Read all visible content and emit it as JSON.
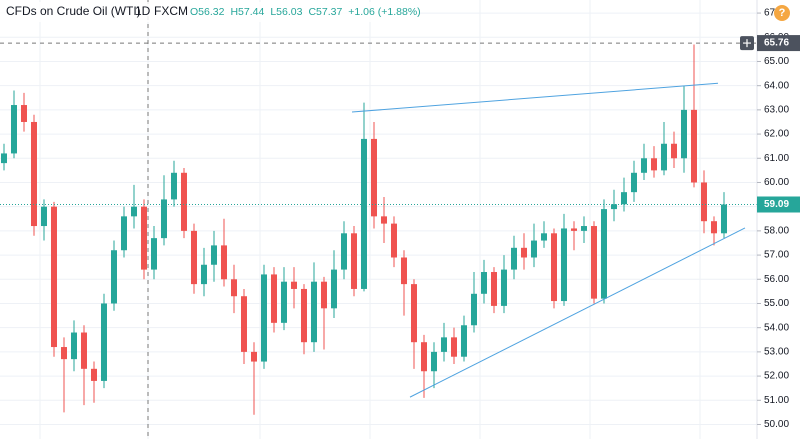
{
  "chart_data": {
    "type": "candlestick",
    "title": "CFDs on Crude Oil (WTI)",
    "interval": "1D",
    "source": "FXCM",
    "legend_ohlc": [
      "O56.32",
      "H57.44",
      "L56.03",
      "C57.37",
      "+1.06 (+1.88%)"
    ],
    "up_color": "#26a69a",
    "down_color": "#ef5350",
    "open": [
      60.8,
      61.2,
      63.2,
      62.5,
      58.2,
      59.0,
      53.2,
      52.7,
      53.8,
      52.3,
      51.8,
      55.0,
      57.2,
      58.6,
      59.0,
      56.4,
      57.7,
      59.3,
      60.4,
      58.0,
      55.8,
      56.6,
      57.4,
      56.0,
      55.3,
      53.0,
      52.6,
      56.2,
      54.2,
      55.9,
      55.6,
      53.4,
      55.9,
      54.8,
      56.4,
      57.9,
      55.6,
      61.8,
      58.6,
      58.3,
      56.9,
      55.8,
      53.4,
      52.2,
      53.0,
      53.6,
      52.8,
      54.1,
      55.4,
      56.3,
      54.9,
      56.4,
      57.3,
      56.9,
      57.6,
      57.9,
      55.1,
      58.1,
      58.0,
      58.2,
      55.2,
      58.9,
      59.1,
      59.6,
      60.4,
      61.0,
      60.5,
      61.6,
      61.0,
      63.0,
      60.0,
      58.4,
      57.9
    ],
    "high": [
      61.6,
      63.8,
      63.7,
      62.8,
      59.3,
      59.2,
      53.6,
      54.3,
      54.1,
      52.6,
      55.4,
      57.6,
      59.0,
      59.9,
      59.3,
      58.2,
      60.3,
      60.9,
      60.6,
      58.3,
      57.3,
      58.0,
      58.5,
      56.6,
      55.6,
      53.4,
      56.6,
      56.5,
      56.5,
      56.5,
      55.8,
      56.7,
      56.1,
      57.2,
      58.4,
      58.2,
      63.3,
      62.5,
      59.4,
      58.6,
      57.2,
      56.0,
      53.7,
      53.4,
      54.2,
      54.0,
      54.5,
      56.3,
      56.8,
      56.5,
      57.0,
      57.8,
      57.9,
      58.3,
      58.4,
      58.1,
      58.7,
      58.4,
      58.6,
      58.4,
      59.3,
      59.7,
      60.2,
      60.9,
      61.6,
      61.5,
      62.5,
      62.1,
      64.0,
      65.7,
      60.5,
      58.6,
      59.6
    ],
    "low": [
      60.5,
      61.0,
      62.1,
      57.8,
      57.6,
      52.8,
      50.5,
      52.2,
      50.8,
      50.9,
      51.5,
      54.7,
      56.9,
      58.1,
      56.0,
      56.0,
      57.4,
      59.0,
      57.7,
      55.4,
      55.3,
      55.9,
      55.7,
      54.6,
      52.5,
      50.4,
      52.3,
      53.8,
      53.9,
      54.8,
      52.9,
      53.0,
      53.1,
      54.4,
      56.0,
      55.3,
      55.5,
      58.1,
      57.5,
      56.5,
      54.5,
      52.3,
      51.1,
      51.5,
      52.6,
      52.5,
      52.6,
      53.8,
      55.0,
      54.6,
      54.6,
      56.0,
      56.4,
      56.5,
      57.3,
      54.8,
      54.9,
      57.2,
      57.5,
      55.0,
      55.0,
      58.4,
      58.8,
      59.2,
      60.1,
      60.2,
      60.3,
      60.6,
      60.4,
      59.8,
      57.9,
      57.4,
      57.7
    ],
    "close": [
      61.2,
      63.2,
      62.5,
      58.2,
      59.0,
      53.2,
      52.7,
      53.8,
      52.3,
      51.8,
      55.0,
      57.2,
      58.6,
      59.0,
      56.4,
      57.7,
      59.3,
      60.4,
      58.0,
      55.8,
      56.6,
      57.4,
      56.0,
      55.3,
      53.0,
      52.6,
      56.2,
      54.2,
      55.9,
      55.6,
      53.4,
      55.9,
      54.8,
      56.4,
      57.9,
      55.6,
      61.8,
      58.6,
      58.3,
      56.9,
      55.8,
      53.4,
      52.2,
      53.0,
      53.6,
      52.8,
      54.1,
      55.4,
      56.3,
      54.9,
      56.4,
      57.3,
      56.9,
      57.6,
      57.9,
      55.1,
      58.1,
      58.0,
      58.2,
      55.2,
      58.9,
      59.1,
      59.6,
      60.4,
      61.0,
      60.5,
      61.6,
      61.0,
      63.0,
      60.0,
      58.4,
      57.9,
      59.09
    ],
    "ylim": [
      49.4,
      67.54
    ],
    "yticks": [
      {
        "value": 50,
        "label": "50.00"
      },
      {
        "value": 51,
        "label": "51.00"
      },
      {
        "value": 52,
        "label": "52.00"
      },
      {
        "value": 53,
        "label": "53.00"
      },
      {
        "value": 54,
        "label": "54.00"
      },
      {
        "value": 55,
        "label": "55.00"
      },
      {
        "value": 56,
        "label": "56.00"
      },
      {
        "value": 57,
        "label": "57.00"
      },
      {
        "value": 58,
        "label": "58.00"
      },
      {
        "value": 59,
        "label": "59.00"
      },
      {
        "value": 60,
        "label": "60.00"
      },
      {
        "value": 61,
        "label": "61.00"
      },
      {
        "value": 62,
        "label": "62.00"
      },
      {
        "value": 63,
        "label": "63.00"
      },
      {
        "value": 64,
        "label": "64.00"
      },
      {
        "value": 65,
        "label": "65.00"
      },
      {
        "value": 66,
        "label": "66.00"
      },
      {
        "value": 67,
        "label": "67.00"
      }
    ],
    "grid": true,
    "crosshair_price": {
      "value": 65.76,
      "label": "65.76"
    },
    "last_price": {
      "value": 59.09,
      "label": "59.09"
    },
    "trendlines": [
      {
        "x": [
          34.8,
          71.4
        ],
        "y": [
          62.91,
          64.1
        ]
      },
      {
        "x": [
          40.6,
          74.1
        ],
        "y": [
          51.13,
          58.12
        ]
      }
    ],
    "trendline_color": "#4fa3e0"
  }
}
